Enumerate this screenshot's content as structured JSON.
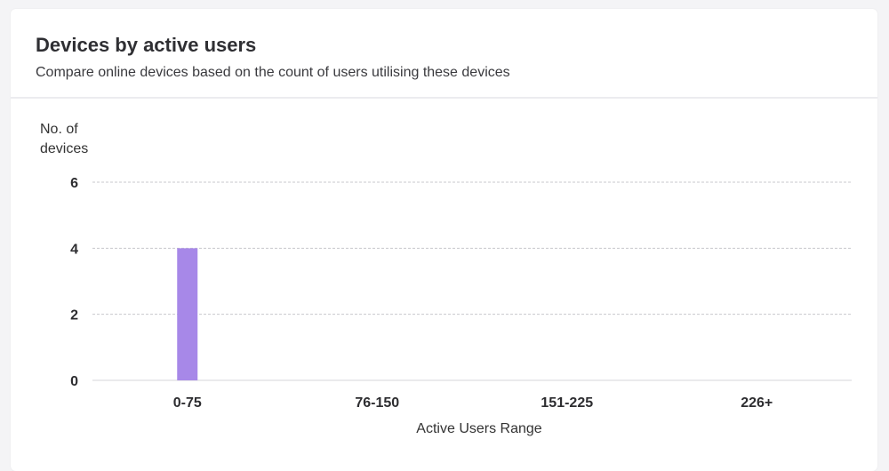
{
  "card": {
    "title": "Devices by active users",
    "subtitle": "Compare online devices based on the count of users utilising these devices"
  },
  "chart_data": {
    "type": "bar",
    "categories": [
      "0-75",
      "76-150",
      "151-225",
      "226+"
    ],
    "values": [
      4,
      0,
      0,
      0
    ],
    "xlabel": "Active Users Range",
    "ylabel": "No. of devices",
    "ylim": [
      0,
      6
    ],
    "yticks": [
      0,
      2,
      4,
      6
    ],
    "grid": true,
    "colors": {
      "bar": "#a788e8",
      "grid": "#c8c8cc",
      "axis": "#d6d6da"
    }
  }
}
